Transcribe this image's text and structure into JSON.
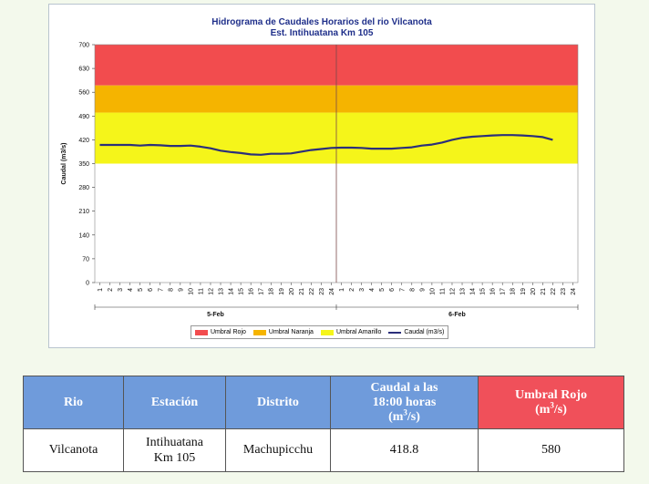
{
  "chart_data": {
    "type": "line",
    "title": "Hidrograma de Caudales Horarios del rio Vilcanota",
    "subtitle": "Est. Intihuatana Km 105",
    "ylabel": "Caudal (m3/s)",
    "ylim": [
      0,
      700
    ],
    "yticks": [
      0,
      70,
      140,
      210,
      280,
      350,
      420,
      490,
      560,
      630,
      700
    ],
    "x_tick_labels": [
      "1",
      "2",
      "3",
      "4",
      "5",
      "6",
      "7",
      "8",
      "9",
      "10",
      "11",
      "12",
      "13",
      "14",
      "15",
      "16",
      "17",
      "18",
      "19",
      "20",
      "21",
      "22",
      "23",
      "24",
      "1",
      "2",
      "3",
      "4",
      "5",
      "6",
      "7",
      "8",
      "9",
      "10",
      "11",
      "12",
      "13",
      "14",
      "15",
      "16",
      "17",
      "18",
      "19",
      "20",
      "21",
      "22",
      "23",
      "24"
    ],
    "day_groups": [
      {
        "label": "5-Feb",
        "start_index": 0,
        "end_index": 23
      },
      {
        "label": "6-Feb",
        "start_index": 24,
        "end_index": 47
      }
    ],
    "bands": [
      {
        "name": "Umbral Rojo",
        "from": 580,
        "to": 700,
        "color": "#f24c4e"
      },
      {
        "name": "Umbral Naranja",
        "from": 500,
        "to": 580,
        "color": "#f5b400"
      },
      {
        "name": "Umbral Amarillo",
        "from": 350,
        "to": 500,
        "color": "#f5f51a"
      }
    ],
    "series": [
      {
        "name": "Caudal (m3/s)",
        "color": "#2b2f7a",
        "values": [
          405,
          405,
          405,
          405,
          403,
          405,
          404,
          402,
          402,
          403,
          400,
          395,
          388,
          384,
          381,
          377,
          376,
          379,
          379,
          380,
          385,
          390,
          393,
          396,
          397,
          397,
          396,
          394,
          394,
          394,
          396,
          398,
          403,
          406,
          412,
          420,
          426,
          429,
          431,
          433,
          434,
          434,
          433,
          431,
          428,
          420
        ]
      }
    ],
    "legend": {
      "position": "bottom",
      "items": [
        {
          "label": "Umbral Rojo",
          "color": "#f24c4e",
          "kind": "box"
        },
        {
          "label": "Umbral Naranja",
          "color": "#f5b400",
          "kind": "box"
        },
        {
          "label": "Umbral Amarillo",
          "color": "#f5f51a",
          "kind": "box"
        },
        {
          "label": "Caudal (m3/s)",
          "color": "#2b2f7a",
          "kind": "line"
        }
      ]
    },
    "grid": false
  },
  "table": {
    "headers": {
      "rio": "Rio",
      "estacion": "Estación",
      "distrito": "Distrito",
      "caudal_line1": "Caudal a las",
      "caudal_line2": "18:00 horas",
      "caudal_unit_base": "(m",
      "caudal_unit_sup": "3",
      "caudal_unit_end": "/s)",
      "umbral_line1": "Umbral Rojo",
      "umbral_unit_base": "(m",
      "umbral_unit_sup": "3",
      "umbral_unit_end": "/s)"
    },
    "row": {
      "rio": "Vilcanota",
      "estacion_line1": "Intihuatana",
      "estacion_line2": "Km 105",
      "distrito": "Machupicchu",
      "caudal": "418.8",
      "umbral": "580"
    },
    "colors": {
      "header_blue": "#6f9bdb",
      "header_red": "#f0505a"
    }
  }
}
